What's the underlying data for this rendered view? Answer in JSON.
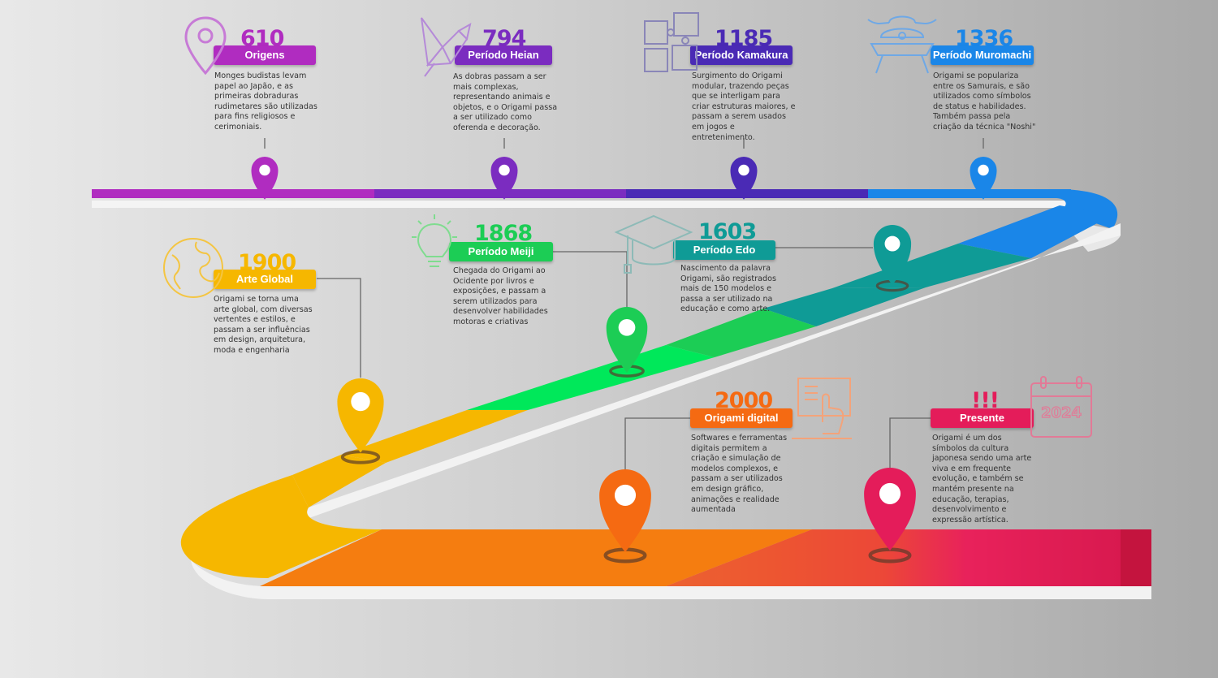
{
  "events": [
    {
      "id": "origens",
      "year": "610",
      "label": "Origens",
      "color": "#b02cc0",
      "desc": "Monges budistas levam papel ao Japão, e as primeiras dobraduras rudimetares são utilizadas para fins religiosos e cerimoniais.",
      "icon": "map-pin-icon"
    },
    {
      "id": "heian",
      "year": "794",
      "label": "Período Heian",
      "color": "#7b2cc0",
      "desc": "As dobras passam a ser mais complexas, representando animais e objetos, e o Origami passa a ser utilizado como oferenda e decoração.",
      "icon": "origami-crane-icon"
    },
    {
      "id": "kamakura",
      "year": "1185",
      "label": "Período Kamakura",
      "color": "#4a2ab5",
      "desc": "Surgimento do Origami modular, trazendo peças que se interligam para criar estruturas maiores, e passam a serem usados em jogos e entretenimento.",
      "icon": "puzzle-icon"
    },
    {
      "id": "muromachi",
      "year": "1336",
      "label": "Período Muromachi",
      "color": "#1a86e8",
      "desc": "Origami se populariza entre os Samurais, e são utilizados como símbolos de status e habilidades. Também passa pela criação da técnica \"Noshi\"",
      "icon": "samurai-helmet-icon"
    },
    {
      "id": "edo",
      "year": "1603",
      "label": "Período Edo",
      "color": "#0f9b96",
      "desc": "Nascimento da palavra Origami, são registrados mais de 150 modelos e passa a ser utilizado na educação e como arte.",
      "icon": "graduation-cap-icon"
    },
    {
      "id": "meiji",
      "year": "1868",
      "label": "Período Meiji",
      "color": "#1ccd55",
      "desc": "Chegada do Origami ao Ocidente por livros e exposições, e passam a serem utilizados para desenvolver habilidades motoras e criativas",
      "icon": "lightbulb-icon"
    },
    {
      "id": "global",
      "year": "1900",
      "label": "Arte Global",
      "color": "#f6b700",
      "desc": "Origami se torna uma arte global, com diversas vertentes e estilos, e passam a ser influências em design, arquitetura, moda e engenharia",
      "icon": "globe-icon"
    },
    {
      "id": "digital",
      "year": "2000",
      "label": "Origami digital",
      "color": "#f56a12",
      "desc": "Softwares e ferramentas digitais permitem a criação e simulação de modelos complexos, e passam a ser utilizados em design gráfico, animações e realidade aumentada",
      "icon": "touchscreen-icon"
    },
    {
      "id": "presente",
      "year": "!!!",
      "label": "Presente",
      "color": "#e41c5a",
      "desc": "Origami é um dos símbolos da cultura japonesa sendo uma arte viva e em frequente evolução, e também se mantém presente na educação, terapias, desenvolvimento e expressão artística.",
      "icon": "calendar-icon",
      "icon_text": "2024"
    }
  ]
}
